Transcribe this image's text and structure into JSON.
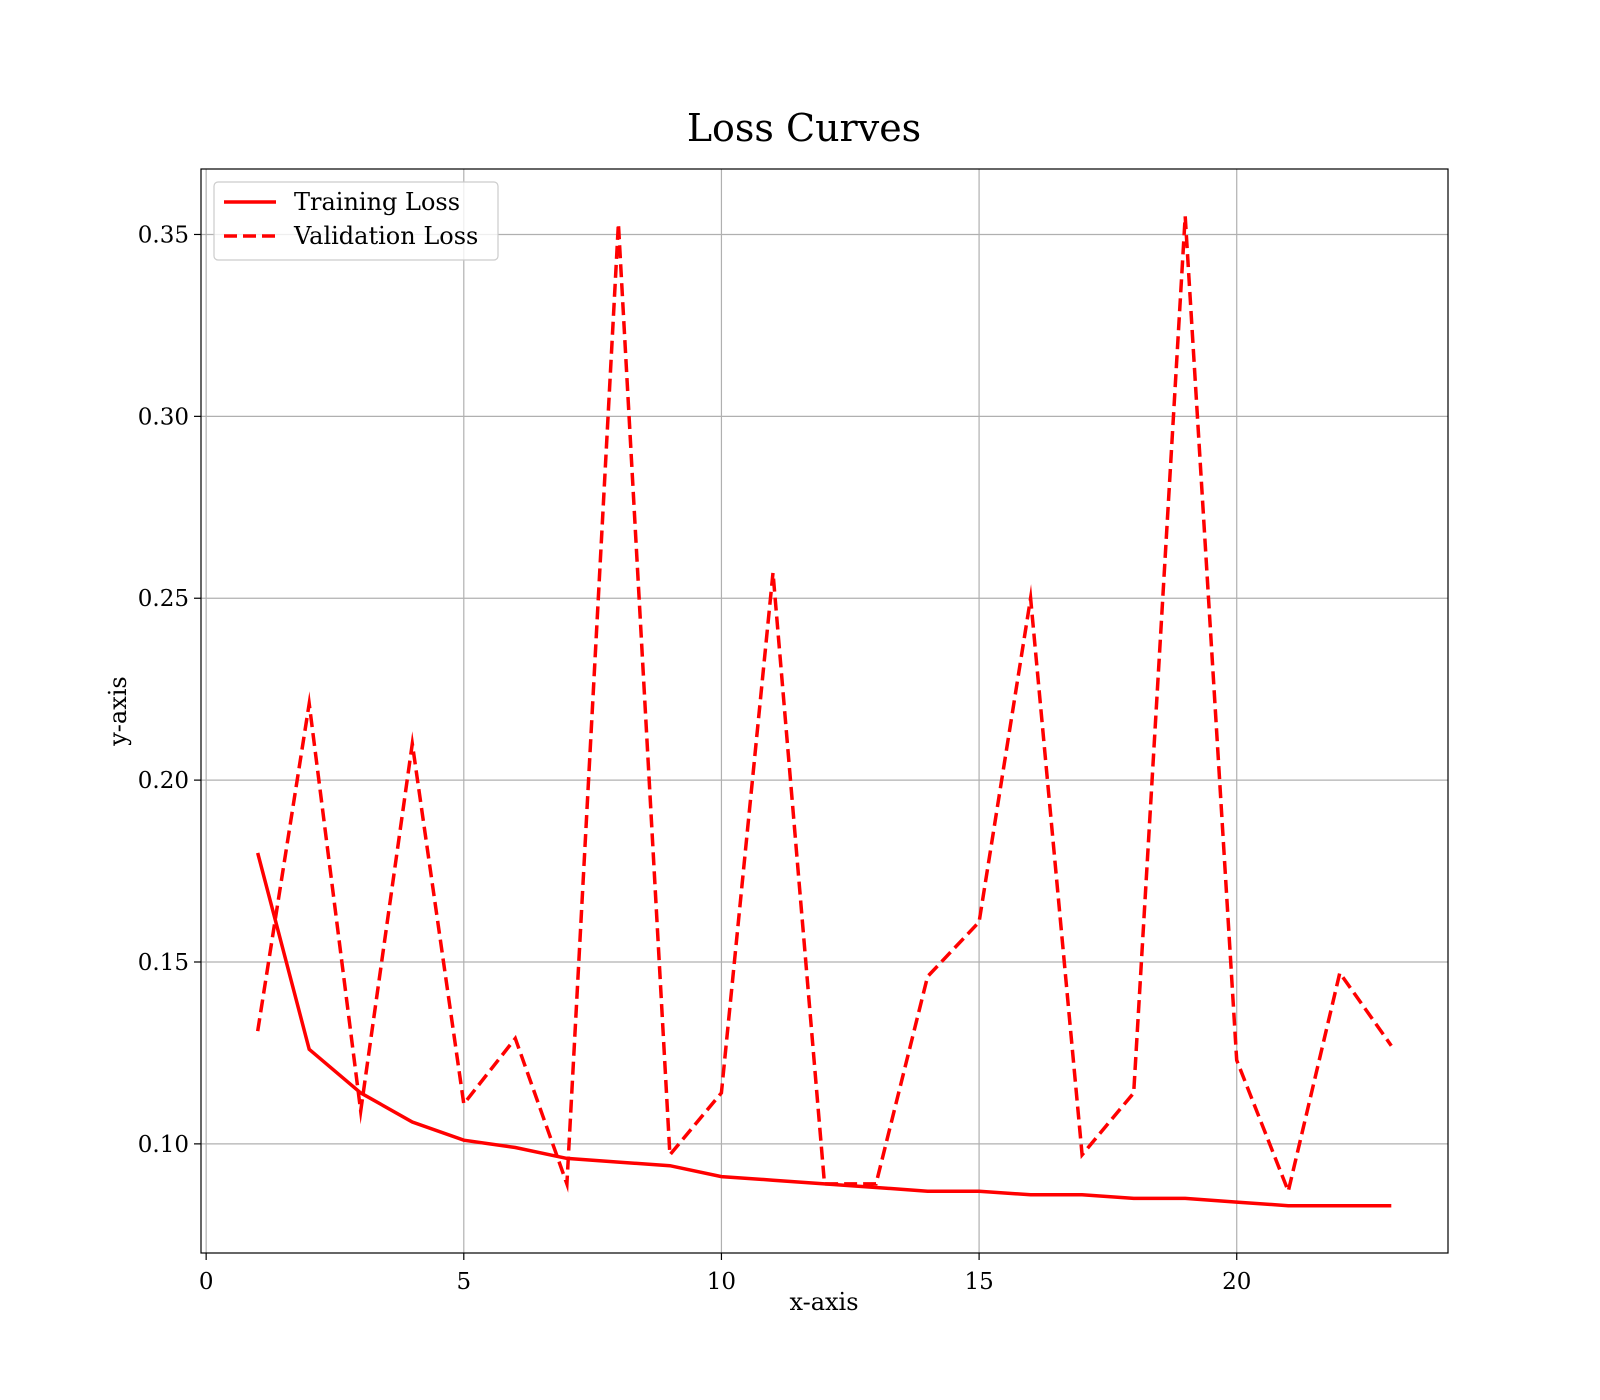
{
  "chart_data": {
    "type": "line",
    "title": "Loss Curves",
    "xlabel": "x-axis",
    "ylabel": "y-axis",
    "xlim": [
      -0.1,
      24.1
    ],
    "ylim": [
      0.07,
      0.368
    ],
    "xticks": [
      0,
      5,
      10,
      15,
      20
    ],
    "yticks": [
      0.1,
      0.15,
      0.2,
      0.25,
      0.3,
      0.35
    ],
    "ytick_labels": [
      "0.10",
      "0.15",
      "0.20",
      "0.25",
      "0.30",
      "0.35"
    ],
    "grid": true,
    "legend_position": "top-left",
    "x": [
      1,
      2,
      3,
      4,
      5,
      6,
      7,
      8,
      9,
      10,
      11,
      12,
      13,
      14,
      15,
      16,
      17,
      18,
      19,
      20,
      21,
      22,
      23
    ],
    "series": [
      {
        "name": "Training Loss",
        "style": "solid",
        "color": "#ff0000",
        "values": [
          0.18,
          0.126,
          0.114,
          0.106,
          0.101,
          0.099,
          0.096,
          0.095,
          0.094,
          0.091,
          0.09,
          0.089,
          0.088,
          0.087,
          0.087,
          0.086,
          0.086,
          0.085,
          0.085,
          0.084,
          0.083,
          0.083,
          0.083
        ]
      },
      {
        "name": "Validation Loss",
        "style": "dashed",
        "color": "#ff0000",
        "values": [
          0.131,
          0.221,
          0.109,
          0.21,
          0.111,
          0.129,
          0.089,
          0.353,
          0.097,
          0.114,
          0.257,
          0.089,
          0.089,
          0.146,
          0.161,
          0.25,
          0.097,
          0.114,
          0.355,
          0.123,
          0.087,
          0.147,
          0.127
        ]
      }
    ]
  }
}
